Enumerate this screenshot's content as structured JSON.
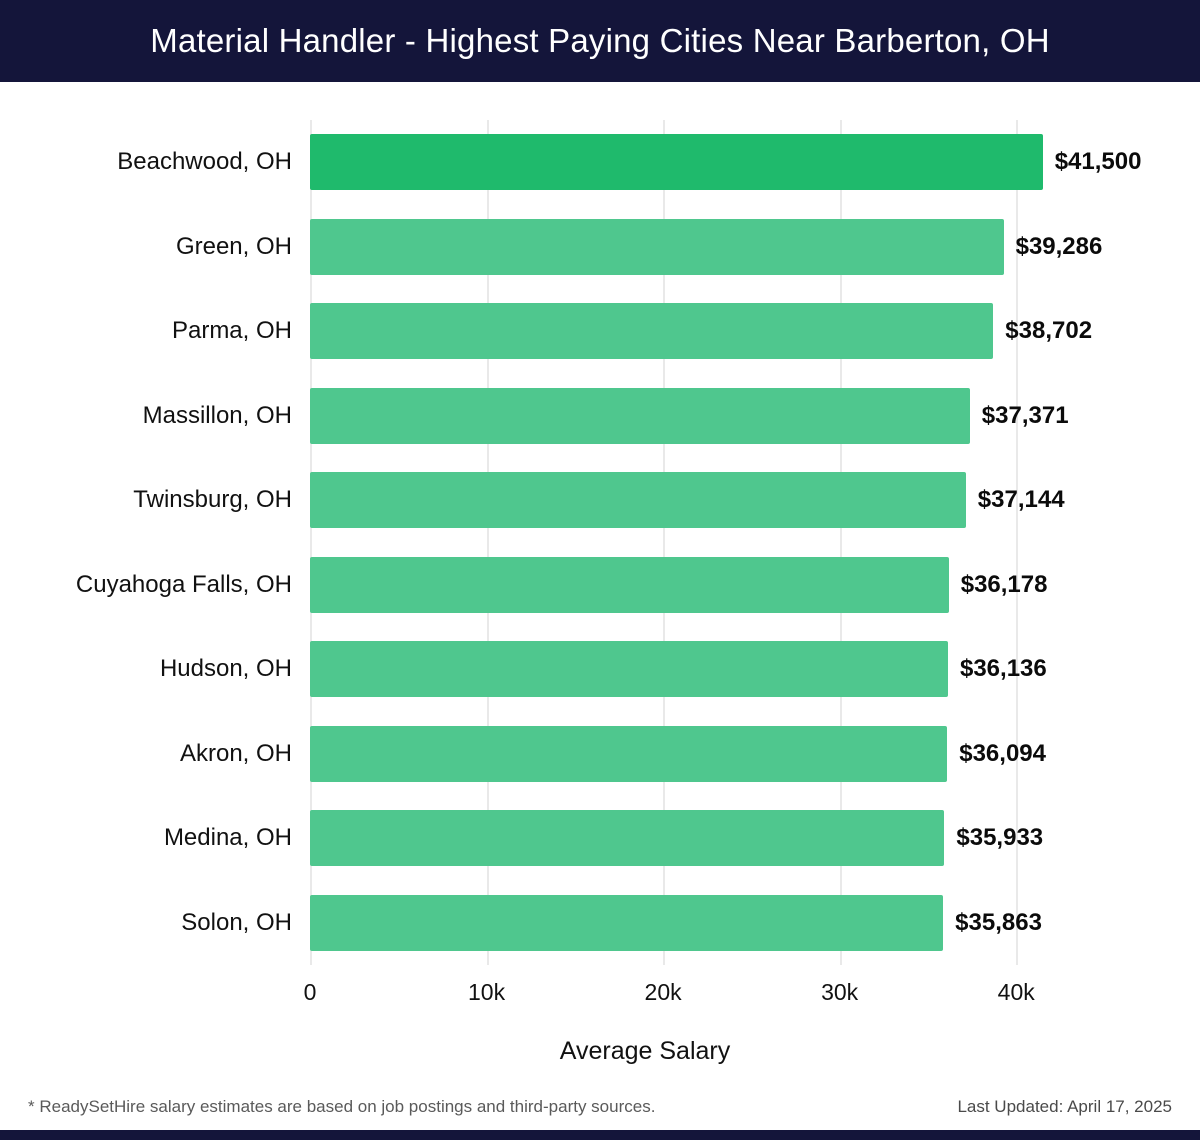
{
  "header": {
    "title": "Material Handler - Highest Paying Cities Near Barberton, OH",
    "background": "#14153a",
    "text_color": "#ffffff"
  },
  "chart_data": {
    "type": "bar",
    "orientation": "horizontal",
    "title": "Material Handler - Highest Paying Cities Near Barberton, OH",
    "categories": [
      "Beachwood, OH",
      "Green, OH",
      "Parma, OH",
      "Massillon, OH",
      "Twinsburg, OH",
      "Cuyahoga Falls, OH",
      "Hudson, OH",
      "Akron, OH",
      "Medina, OH",
      "Solon, OH"
    ],
    "values": [
      41500,
      39286,
      38702,
      37371,
      37144,
      36178,
      36136,
      36094,
      35933,
      35863
    ],
    "value_labels": [
      "$41,500",
      "$39,286",
      "$38,702",
      "$37,371",
      "$37,144",
      "$36,178",
      "$36,136",
      "$36,094",
      "$35,933",
      "$35,863"
    ],
    "xlabel": "Average Salary",
    "ylabel": "",
    "xlim": [
      0,
      43500
    ],
    "x_ticks": [
      {
        "value": 0,
        "label": "0"
      },
      {
        "value": 10000,
        "label": "10k"
      },
      {
        "value": 20000,
        "label": "20k"
      },
      {
        "value": 30000,
        "label": "30k"
      },
      {
        "value": 40000,
        "label": "40k"
      }
    ],
    "grid": "vertical",
    "legend": "none",
    "bar_color_highlight": "#1fba6c",
    "bar_color_default": "#4fc78e"
  },
  "footer": {
    "note": "* ReadySetHire salary estimates are based on job postings and third-party sources.",
    "last_updated": "Last Updated: April 17, 2025"
  }
}
